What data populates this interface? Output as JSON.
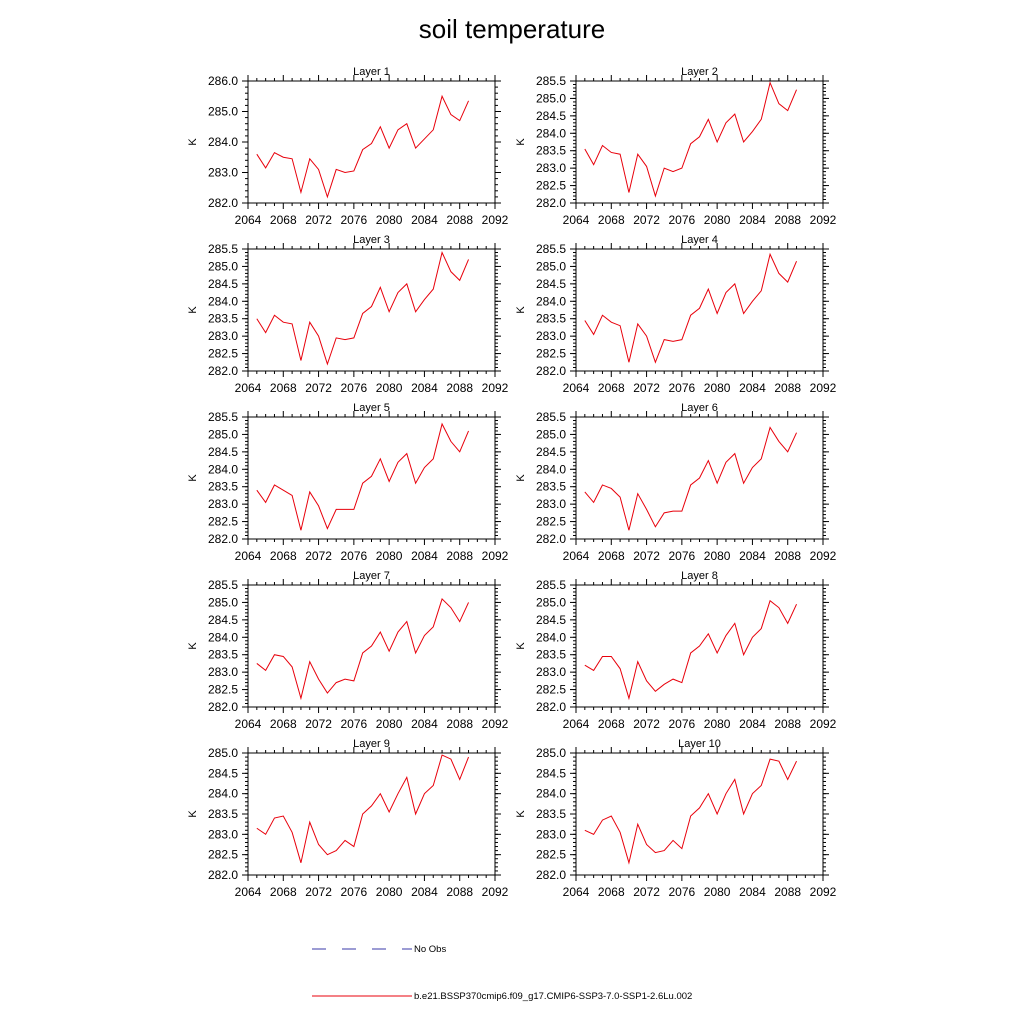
{
  "title": "soil temperature",
  "legend": {
    "no_obs": "No Obs",
    "no_obs_color": "#3a3aa8",
    "model": "b.e21.BSSP370cmip6.f09_g17.CMIP6-SSP3-7.0-SSP1-2.6Lu.002",
    "model_color": "#e8000b"
  },
  "chart_data": [
    {
      "type": "line",
      "title": "Layer 1",
      "ylabel": "K",
      "xlim": [
        2064,
        2092
      ],
      "ylim": [
        282.0,
        286.0
      ],
      "xticks": [
        "2064",
        "2068",
        "2072",
        "2076",
        "2080",
        "2084",
        "2088",
        "2092"
      ],
      "yticks": [
        "282.0",
        "283.0",
        "284.0",
        "285.0",
        "286.0"
      ],
      "x": [
        2065,
        2066,
        2067,
        2068,
        2069,
        2070,
        2071,
        2072,
        2073,
        2074,
        2075,
        2076,
        2077,
        2078,
        2079,
        2080,
        2081,
        2082,
        2083,
        2084,
        2085,
        2086,
        2087,
        2088,
        2089
      ],
      "series": [
        {
          "name": "b.e21.BSSP370cmip6.f09_g17.CMIP6-SSP3-7.0-SSP1-2.6Lu.002",
          "values": [
            283.6,
            283.15,
            283.65,
            283.5,
            283.45,
            282.35,
            283.45,
            283.1,
            282.2,
            283.1,
            283.0,
            283.05,
            283.75,
            283.95,
            284.5,
            283.8,
            284.4,
            284.6,
            283.8,
            284.1,
            284.4,
            285.5,
            284.9,
            284.7,
            285.35
          ]
        }
      ]
    },
    {
      "type": "line",
      "title": "Layer 2",
      "ylabel": "K",
      "xlim": [
        2064,
        2092
      ],
      "ylim": [
        282.0,
        285.5
      ],
      "xticks": [
        "2064",
        "2068",
        "2072",
        "2076",
        "2080",
        "2084",
        "2088",
        "2092"
      ],
      "yticks": [
        "282.0",
        "282.5",
        "283.0",
        "283.5",
        "284.0",
        "284.5",
        "285.0",
        "285.5"
      ],
      "x": [
        2065,
        2066,
        2067,
        2068,
        2069,
        2070,
        2071,
        2072,
        2073,
        2074,
        2075,
        2076,
        2077,
        2078,
        2079,
        2080,
        2081,
        2082,
        2083,
        2084,
        2085,
        2086,
        2087,
        2088,
        2089
      ],
      "series": [
        {
          "name": "b.e21.BSSP370cmip6.f09_g17.CMIP6-SSP3-7.0-SSP1-2.6Lu.002",
          "values": [
            283.55,
            283.1,
            283.65,
            283.45,
            283.4,
            282.3,
            283.4,
            283.05,
            282.2,
            283.0,
            282.9,
            283.0,
            283.7,
            283.9,
            284.4,
            283.75,
            284.3,
            284.55,
            283.75,
            284.05,
            284.4,
            285.45,
            284.85,
            284.65,
            285.25
          ]
        }
      ]
    },
    {
      "type": "line",
      "title": "Layer 3",
      "ylabel": "K",
      "xlim": [
        2064,
        2092
      ],
      "ylim": [
        282.0,
        285.5
      ],
      "xticks": [
        "2064",
        "2068",
        "2072",
        "2076",
        "2080",
        "2084",
        "2088",
        "2092"
      ],
      "yticks": [
        "282.0",
        "282.5",
        "283.0",
        "283.5",
        "284.0",
        "284.5",
        "285.0",
        "285.5"
      ],
      "x": [
        2065,
        2066,
        2067,
        2068,
        2069,
        2070,
        2071,
        2072,
        2073,
        2074,
        2075,
        2076,
        2077,
        2078,
        2079,
        2080,
        2081,
        2082,
        2083,
        2084,
        2085,
        2086,
        2087,
        2088,
        2089
      ],
      "series": [
        {
          "name": "b.e21.BSSP370cmip6.f09_g17.CMIP6-SSP3-7.0-SSP1-2.6Lu.002",
          "values": [
            283.5,
            283.1,
            283.6,
            283.4,
            283.35,
            282.3,
            283.4,
            283.0,
            282.2,
            282.95,
            282.9,
            282.95,
            283.65,
            283.85,
            284.4,
            283.7,
            284.25,
            284.5,
            283.7,
            284.05,
            284.35,
            285.4,
            284.85,
            284.6,
            285.2
          ]
        }
      ]
    },
    {
      "type": "line",
      "title": "Layer 4",
      "ylabel": "K",
      "xlim": [
        2064,
        2092
      ],
      "ylim": [
        282.0,
        285.5
      ],
      "xticks": [
        "2064",
        "2068",
        "2072",
        "2076",
        "2080",
        "2084",
        "2088",
        "2092"
      ],
      "yticks": [
        "282.0",
        "282.5",
        "283.0",
        "283.5",
        "284.0",
        "284.5",
        "285.0",
        "285.5"
      ],
      "x": [
        2065,
        2066,
        2067,
        2068,
        2069,
        2070,
        2071,
        2072,
        2073,
        2074,
        2075,
        2076,
        2077,
        2078,
        2079,
        2080,
        2081,
        2082,
        2083,
        2084,
        2085,
        2086,
        2087,
        2088,
        2089
      ],
      "series": [
        {
          "name": "b.e21.BSSP370cmip6.f09_g17.CMIP6-SSP3-7.0-SSP1-2.6Lu.002",
          "values": [
            283.45,
            283.05,
            283.6,
            283.4,
            283.3,
            282.25,
            283.35,
            283.0,
            282.25,
            282.9,
            282.85,
            282.9,
            283.6,
            283.8,
            284.35,
            283.65,
            284.25,
            284.5,
            283.65,
            284.0,
            284.3,
            285.35,
            284.8,
            284.55,
            285.15
          ]
        }
      ]
    },
    {
      "type": "line",
      "title": "Layer 5",
      "ylabel": "K",
      "xlim": [
        2064,
        2092
      ],
      "ylim": [
        282.0,
        285.5
      ],
      "xticks": [
        "2064",
        "2068",
        "2072",
        "2076",
        "2080",
        "2084",
        "2088",
        "2092"
      ],
      "yticks": [
        "282.0",
        "282.5",
        "283.0",
        "283.5",
        "284.0",
        "284.5",
        "285.0",
        "285.5"
      ],
      "x": [
        2065,
        2066,
        2067,
        2068,
        2069,
        2070,
        2071,
        2072,
        2073,
        2074,
        2075,
        2076,
        2077,
        2078,
        2079,
        2080,
        2081,
        2082,
        2083,
        2084,
        2085,
        2086,
        2087,
        2088,
        2089
      ],
      "series": [
        {
          "name": "b.e21.BSSP370cmip6.f09_g17.CMIP6-SSP3-7.0-SSP1-2.6Lu.002",
          "values": [
            283.4,
            283.05,
            283.55,
            283.4,
            283.25,
            282.25,
            283.35,
            282.95,
            282.3,
            282.85,
            282.85,
            282.85,
            283.6,
            283.8,
            284.3,
            283.65,
            284.2,
            284.45,
            283.6,
            284.05,
            284.3,
            285.3,
            284.8,
            284.5,
            285.1
          ]
        }
      ]
    },
    {
      "type": "line",
      "title": "Layer 6",
      "ylabel": "K",
      "xlim": [
        2064,
        2092
      ],
      "ylim": [
        282.0,
        285.5
      ],
      "xticks": [
        "2064",
        "2068",
        "2072",
        "2076",
        "2080",
        "2084",
        "2088",
        "2092"
      ],
      "yticks": [
        "282.0",
        "282.5",
        "283.0",
        "283.5",
        "284.0",
        "284.5",
        "285.0",
        "285.5"
      ],
      "x": [
        2065,
        2066,
        2067,
        2068,
        2069,
        2070,
        2071,
        2072,
        2073,
        2074,
        2075,
        2076,
        2077,
        2078,
        2079,
        2080,
        2081,
        2082,
        2083,
        2084,
        2085,
        2086,
        2087,
        2088,
        2089
      ],
      "series": [
        {
          "name": "b.e21.BSSP370cmip6.f09_g17.CMIP6-SSP3-7.0-SSP1-2.6Lu.002",
          "values": [
            283.35,
            283.05,
            283.55,
            283.45,
            283.2,
            282.25,
            283.3,
            282.85,
            282.35,
            282.75,
            282.8,
            282.8,
            283.55,
            283.75,
            284.25,
            283.6,
            284.2,
            284.45,
            283.6,
            284.05,
            284.3,
            285.2,
            284.8,
            284.5,
            285.05
          ]
        }
      ]
    },
    {
      "type": "line",
      "title": "Layer 7",
      "ylabel": "K",
      "xlim": [
        2064,
        2092
      ],
      "ylim": [
        282.0,
        285.5
      ],
      "xticks": [
        "2064",
        "2068",
        "2072",
        "2076",
        "2080",
        "2084",
        "2088",
        "2092"
      ],
      "yticks": [
        "282.0",
        "282.5",
        "283.0",
        "283.5",
        "284.0",
        "284.5",
        "285.0",
        "285.5"
      ],
      "x": [
        2065,
        2066,
        2067,
        2068,
        2069,
        2070,
        2071,
        2072,
        2073,
        2074,
        2075,
        2076,
        2077,
        2078,
        2079,
        2080,
        2081,
        2082,
        2083,
        2084,
        2085,
        2086,
        2087,
        2088,
        2089
      ],
      "series": [
        {
          "name": "b.e21.BSSP370cmip6.f09_g17.CMIP6-SSP3-7.0-SSP1-2.6Lu.002",
          "values": [
            283.25,
            283.05,
            283.5,
            283.45,
            283.15,
            282.25,
            283.3,
            282.8,
            282.4,
            282.7,
            282.8,
            282.75,
            283.55,
            283.75,
            284.15,
            283.6,
            284.15,
            284.45,
            283.55,
            284.05,
            284.3,
            285.1,
            284.85,
            284.45,
            285.0
          ]
        }
      ]
    },
    {
      "type": "line",
      "title": "Layer 8",
      "ylabel": "K",
      "xlim": [
        2064,
        2092
      ],
      "ylim": [
        282.0,
        285.5
      ],
      "xticks": [
        "2064",
        "2068",
        "2072",
        "2076",
        "2080",
        "2084",
        "2088",
        "2092"
      ],
      "yticks": [
        "282.0",
        "282.5",
        "283.0",
        "283.5",
        "284.0",
        "284.5",
        "285.0",
        "285.5"
      ],
      "x": [
        2065,
        2066,
        2067,
        2068,
        2069,
        2070,
        2071,
        2072,
        2073,
        2074,
        2075,
        2076,
        2077,
        2078,
        2079,
        2080,
        2081,
        2082,
        2083,
        2084,
        2085,
        2086,
        2087,
        2088,
        2089
      ],
      "series": [
        {
          "name": "b.e21.BSSP370cmip6.f09_g17.CMIP6-SSP3-7.0-SSP1-2.6Lu.002",
          "values": [
            283.2,
            283.05,
            283.45,
            283.45,
            283.1,
            282.25,
            283.3,
            282.75,
            282.45,
            282.65,
            282.8,
            282.7,
            283.55,
            283.75,
            284.1,
            283.55,
            284.05,
            284.4,
            283.5,
            284.0,
            284.25,
            285.05,
            284.85,
            284.4,
            284.95
          ]
        }
      ]
    },
    {
      "type": "line",
      "title": "Layer 9",
      "ylabel": "K",
      "xlim": [
        2064,
        2092
      ],
      "ylim": [
        282.0,
        285.0
      ],
      "xticks": [
        "2064",
        "2068",
        "2072",
        "2076",
        "2080",
        "2084",
        "2088",
        "2092"
      ],
      "yticks": [
        "282.0",
        "282.5",
        "283.0",
        "283.5",
        "284.0",
        "284.5",
        "285.0"
      ],
      "x": [
        2065,
        2066,
        2067,
        2068,
        2069,
        2070,
        2071,
        2072,
        2073,
        2074,
        2075,
        2076,
        2077,
        2078,
        2079,
        2080,
        2081,
        2082,
        2083,
        2084,
        2085,
        2086,
        2087,
        2088,
        2089
      ],
      "series": [
        {
          "name": "b.e21.BSSP370cmip6.f09_g17.CMIP6-SSP3-7.0-SSP1-2.6Lu.002",
          "values": [
            283.15,
            283.0,
            283.4,
            283.45,
            283.05,
            282.3,
            283.3,
            282.75,
            282.5,
            282.6,
            282.85,
            282.7,
            283.5,
            283.7,
            284.0,
            283.55,
            284.0,
            284.4,
            283.5,
            284.0,
            284.2,
            284.95,
            284.85,
            284.35,
            284.9
          ]
        }
      ]
    },
    {
      "type": "line",
      "title": "Layer 10",
      "ylabel": "K",
      "xlim": [
        2064,
        2092
      ],
      "ylim": [
        282.0,
        285.0
      ],
      "xticks": [
        "2064",
        "2068",
        "2072",
        "2076",
        "2080",
        "2084",
        "2088",
        "2092"
      ],
      "yticks": [
        "282.0",
        "282.5",
        "283.0",
        "283.5",
        "284.0",
        "284.5",
        "285.0"
      ],
      "x": [
        2065,
        2066,
        2067,
        2068,
        2069,
        2070,
        2071,
        2072,
        2073,
        2074,
        2075,
        2076,
        2077,
        2078,
        2079,
        2080,
        2081,
        2082,
        2083,
        2084,
        2085,
        2086,
        2087,
        2088,
        2089
      ],
      "series": [
        {
          "name": "b.e21.BSSP370cmip6.f09_g17.CMIP6-SSP3-7.0-SSP1-2.6Lu.002",
          "values": [
            283.1,
            283.0,
            283.35,
            283.45,
            283.05,
            282.3,
            283.25,
            282.75,
            282.55,
            282.6,
            282.85,
            282.65,
            283.45,
            283.65,
            284.0,
            283.5,
            284.0,
            284.35,
            283.5,
            284.0,
            284.2,
            284.85,
            284.8,
            284.35,
            284.8
          ]
        }
      ]
    }
  ]
}
